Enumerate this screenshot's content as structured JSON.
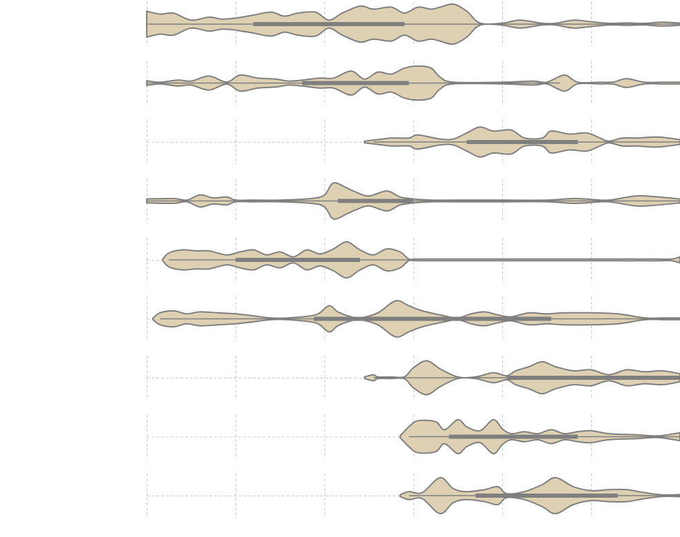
{
  "chart_data": {
    "type": "violin",
    "orientation": "horizontal",
    "title": "",
    "xlabel": "",
    "ylabel": "",
    "xlim": [
      -1,
      5
    ],
    "grid": true,
    "colors": {
      "fill": "#ddd0b3",
      "outline": "#7f7f7f",
      "box": "#7f7f7f",
      "grid": "#cccccc"
    },
    "series": [
      {
        "x": [
          -1.0,
          -0.85,
          -0.7,
          -0.5,
          -0.3,
          -0.15,
          0.0,
          0.2,
          0.4,
          0.55,
          0.7,
          0.9,
          1.05,
          1.2,
          1.4,
          1.55,
          1.75,
          1.9,
          2.05,
          2.2,
          2.3,
          2.45,
          2.6,
          2.75,
          3.0,
          3.2,
          3.45,
          3.6,
          3.8,
          4.0,
          4.2,
          4.4,
          4.6,
          4.8,
          5.0
        ],
        "width": [
          0.65,
          0.5,
          0.55,
          0.2,
          0.35,
          0.25,
          0.3,
          0.45,
          0.6,
          0.4,
          0.55,
          0.6,
          0.2,
          0.55,
          0.9,
          0.75,
          0.85,
          0.55,
          0.85,
          0.75,
          0.85,
          1.0,
          0.65,
          0.05,
          0.05,
          0.2,
          0.03,
          0.03,
          0.2,
          0.12,
          0.03,
          0.06,
          0.03,
          0.1,
          0.05
        ],
        "whisker": [
          -1.0,
          5.0
        ],
        "box": [
          0.2,
          1.9
        ],
        "median": 1.0
      },
      {
        "x": [
          -1.0,
          -0.85,
          -0.65,
          -0.5,
          -0.3,
          -0.1,
          0.05,
          0.25,
          0.45,
          0.6,
          0.75,
          0.95,
          1.1,
          1.3,
          1.45,
          1.6,
          1.75,
          1.9,
          2.05,
          2.2,
          2.3,
          2.45,
          3.0,
          3.35,
          3.5,
          3.7,
          3.85,
          4.1,
          4.25,
          4.4,
          4.6,
          4.8,
          5.0
        ],
        "width": [
          0.12,
          0.02,
          0.15,
          0.1,
          0.35,
          0.05,
          0.4,
          0.25,
          0.2,
          0.1,
          0.15,
          0.25,
          0.25,
          0.6,
          0.2,
          0.55,
          0.45,
          0.75,
          0.85,
          0.75,
          0.3,
          0.02,
          0.02,
          0.1,
          0.02,
          0.4,
          0.02,
          0.02,
          0.05,
          0.22,
          0.02,
          0.02,
          0.02
        ],
        "whisker": [
          -1.0,
          3.65
        ],
        "box": [
          0.75,
          1.95
        ],
        "median": 1.3
      },
      {
        "x": [
          1.45,
          1.6,
          1.75,
          1.95,
          2.05,
          2.3,
          2.45,
          2.6,
          2.75,
          2.9,
          3.1,
          3.25,
          3.45,
          3.55,
          3.75,
          3.95,
          4.1,
          4.2,
          4.35,
          4.5,
          4.75,
          5.0
        ],
        "width": [
          0.02,
          0.12,
          0.2,
          0.2,
          0.35,
          0.15,
          0.15,
          0.45,
          0.75,
          0.55,
          0.6,
          0.2,
          0.2,
          0.55,
          0.4,
          0.45,
          0.2,
          0.02,
          0.2,
          0.2,
          0.25,
          0.12
        ],
        "whisker": [
          1.55,
          5.0
        ],
        "box": [
          2.6,
          3.85
        ],
        "median": 3.2
      },
      {
        "x": [
          -1.0,
          -0.7,
          -0.55,
          -0.4,
          -0.25,
          -0.1,
          0.0,
          0.2,
          0.5,
          0.85,
          1.0,
          1.1,
          1.25,
          1.35,
          1.5,
          1.7,
          1.85,
          2.0,
          2.2,
          2.5,
          3.0,
          3.5,
          3.8,
          4.0,
          4.2,
          4.5,
          4.7,
          5.0
        ],
        "width": [
          0.1,
          0.12,
          0.02,
          0.3,
          0.15,
          0.2,
          0.02,
          0.02,
          0.02,
          0.12,
          0.3,
          0.9,
          0.65,
          0.45,
          0.25,
          0.5,
          0.2,
          0.1,
          0.02,
          0.02,
          0.02,
          0.02,
          0.12,
          0.08,
          0.02,
          0.25,
          0.22,
          0.1
        ],
        "whisker": [
          -1.0,
          5.0
        ],
        "box": [
          1.15,
          2.0
        ],
        "median": 1.6
      },
      {
        "x": [
          -0.82,
          -0.75,
          -0.6,
          -0.45,
          -0.3,
          -0.1,
          0.05,
          0.2,
          0.35,
          0.5,
          0.65,
          0.8,
          0.95,
          1.1,
          1.25,
          1.4,
          1.55,
          1.7,
          1.85,
          1.95,
          2.05,
          2.5,
          3.0,
          3.6,
          3.75,
          3.9,
          4.0,
          4.3,
          4.45,
          4.55,
          4.7,
          4.9,
          5.0
        ],
        "width": [
          0.02,
          0.35,
          0.5,
          0.45,
          0.45,
          0.25,
          0.4,
          0.5,
          0.25,
          0.4,
          0.15,
          0.5,
          0.3,
          0.55,
          0.9,
          0.5,
          0.25,
          0.55,
          0.4,
          0.02,
          0.02,
          0.02,
          0.02,
          0.02,
          0.02,
          0.02,
          0.02,
          0.02,
          0.05,
          0.02,
          0.05,
          0.02,
          0.15
        ],
        "whisker": [
          -0.75,
          1.95
        ],
        "box": [
          0.0,
          1.4
        ],
        "median": 0.95
      },
      {
        "x": [
          -0.93,
          -0.85,
          -0.7,
          -0.55,
          -0.4,
          -0.2,
          0.0,
          0.2,
          0.4,
          0.6,
          0.9,
          1.05,
          1.15,
          1.3,
          1.4,
          1.6,
          1.8,
          1.95,
          2.1,
          2.35,
          2.5,
          2.65,
          2.8,
          2.95,
          3.1,
          3.3,
          3.5,
          3.7,
          4.0,
          4.3,
          4.6,
          4.8,
          5.0
        ],
        "width": [
          0.02,
          0.3,
          0.4,
          0.25,
          0.35,
          0.3,
          0.25,
          0.15,
          0.02,
          0.05,
          0.2,
          0.65,
          0.35,
          0.1,
          0.02,
          0.3,
          0.9,
          0.65,
          0.4,
          0.15,
          0.02,
          0.25,
          0.35,
          0.2,
          0.1,
          0.3,
          0.25,
          0.3,
          0.3,
          0.25,
          0.05,
          0.02,
          0.02
        ],
        "whisker": [
          -0.85,
          5.0
        ],
        "box": [
          0.88,
          3.55
        ],
        "median": 2.1
      },
      {
        "x": [
          1.45,
          1.55,
          1.6,
          1.75,
          1.9,
          2.0,
          2.15,
          2.3,
          2.5,
          2.7,
          2.9,
          3.05,
          3.15,
          3.3,
          3.45,
          3.6,
          3.8,
          4.0,
          4.2,
          4.4,
          4.6,
          4.8,
          5.0
        ],
        "width": [
          0.02,
          0.15,
          0.02,
          0.02,
          0.05,
          0.5,
          0.85,
          0.45,
          0.02,
          0.02,
          0.25,
          0.1,
          0.35,
          0.55,
          0.8,
          0.55,
          0.35,
          0.4,
          0.15,
          0.4,
          0.3,
          0.35,
          0.2
        ],
        "whisker": [
          1.55,
          5.0
        ],
        "box": [
          3.05,
          5.0
        ],
        "median": 4.0
      },
      {
        "x": [
          1.85,
          1.95,
          2.05,
          2.25,
          2.35,
          2.5,
          2.6,
          2.75,
          2.9,
          3.0,
          3.1,
          3.25,
          3.4,
          3.55,
          3.7,
          3.85,
          4.0,
          4.2,
          4.5,
          4.75,
          5.0
        ],
        "width": [
          0.02,
          0.5,
          0.8,
          0.75,
          0.35,
          0.85,
          0.5,
          0.3,
          0.85,
          0.4,
          0.15,
          0.25,
          0.15,
          0.35,
          0.15,
          0.25,
          0.3,
          0.15,
          0.1,
          0.03,
          0.2
        ],
        "whisker": [
          1.95,
          5.0
        ],
        "box": [
          2.4,
          3.85
        ],
        "median": 3.0
      },
      {
        "x": [
          1.85,
          1.95,
          2.1,
          2.3,
          2.45,
          2.6,
          2.8,
          2.95,
          3.05,
          3.25,
          3.45,
          3.6,
          3.8,
          4.0,
          4.2,
          4.4,
          4.6,
          4.8,
          5.0
        ],
        "width": [
          0.02,
          0.2,
          0.15,
          0.9,
          0.35,
          0.2,
          0.3,
          0.45,
          0.1,
          0.2,
          0.55,
          0.9,
          0.45,
          0.25,
          0.3,
          0.3,
          0.15,
          0.02,
          0.05
        ],
        "whisker": [
          1.95,
          5.0
        ],
        "box": [
          2.7,
          4.3
        ],
        "median": 3.3
      }
    ]
  }
}
